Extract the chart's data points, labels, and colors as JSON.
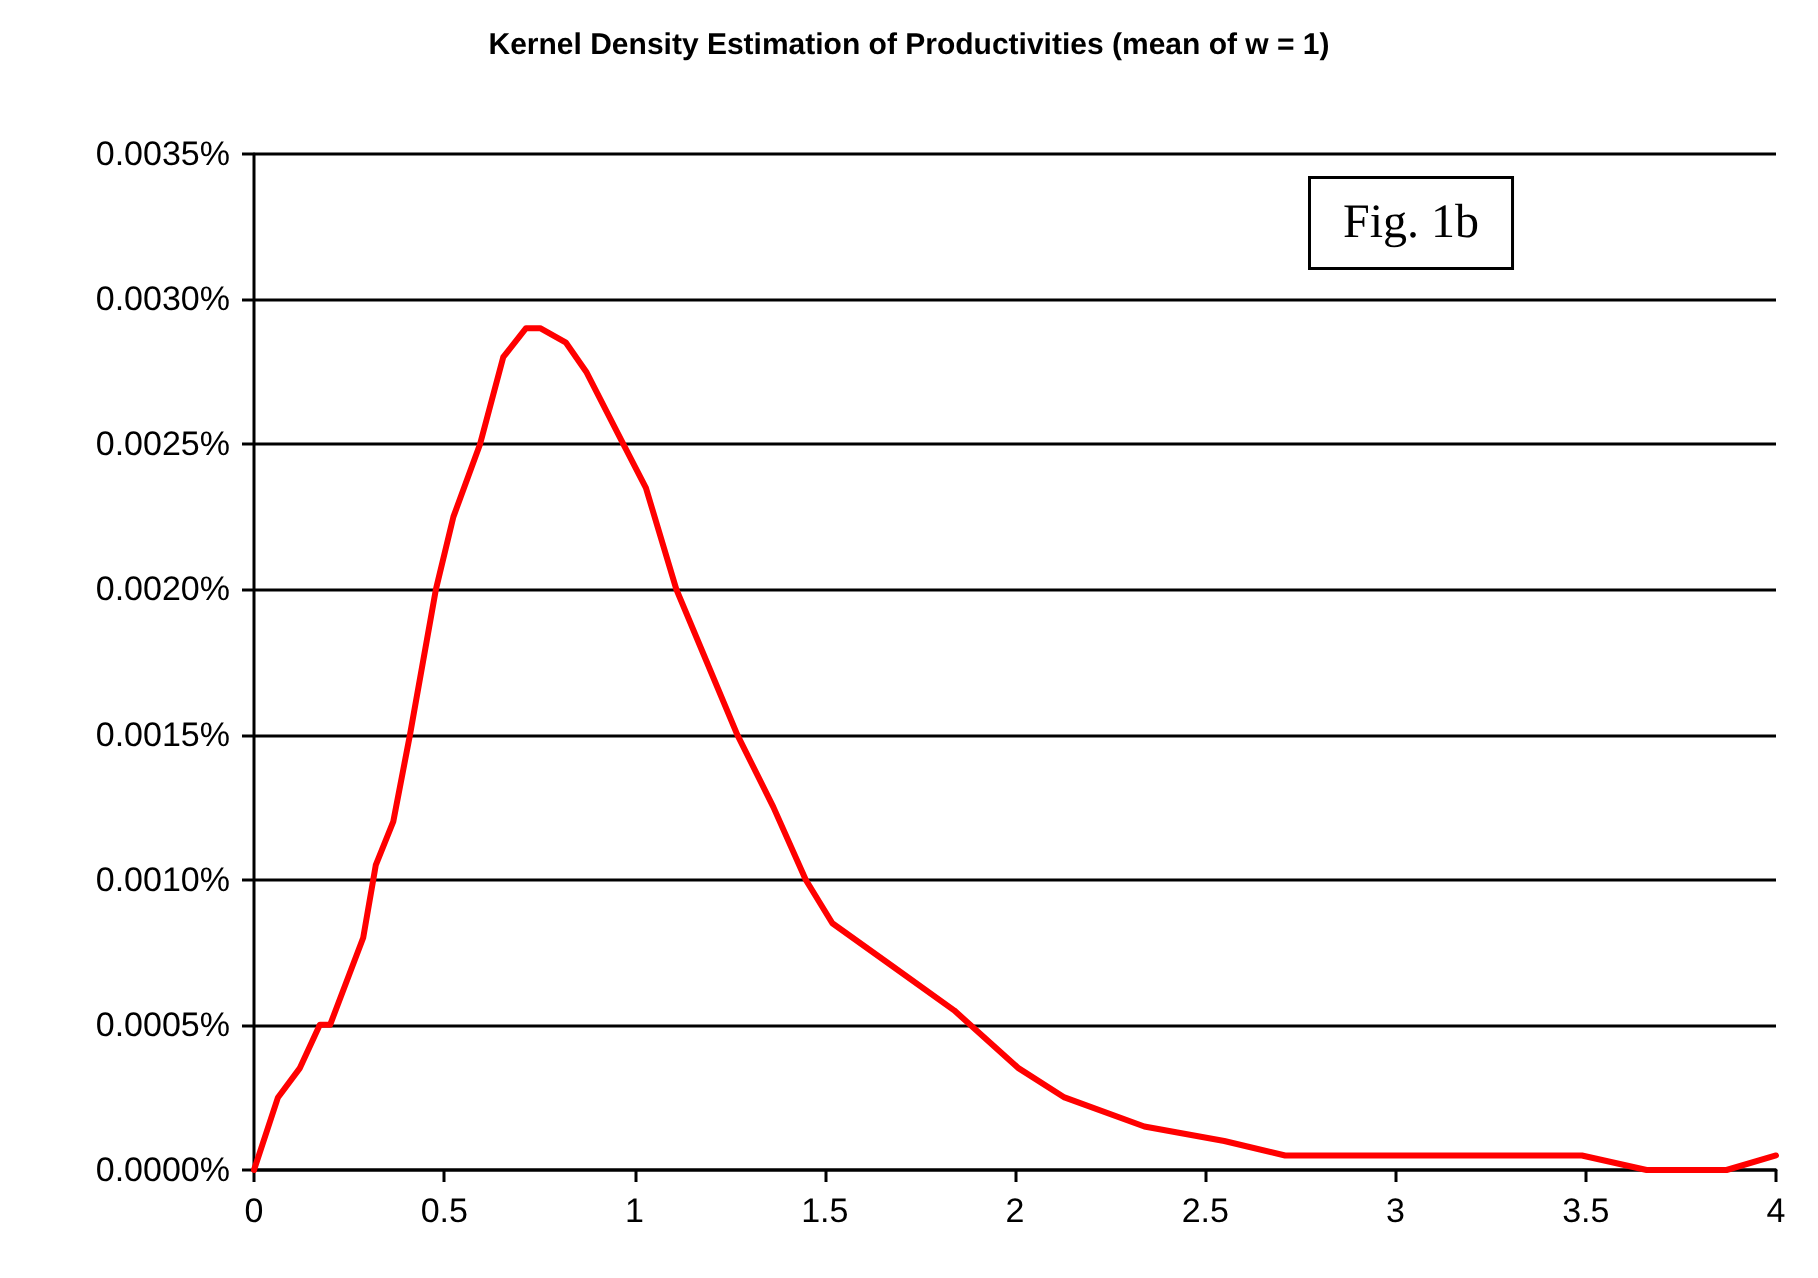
{
  "chart_data": {
    "type": "line",
    "title": "Kernel Density Estimation of Productivities (mean of w = 1)",
    "annotations": [
      "Fig. 1b"
    ],
    "series": [
      {
        "color": "#ff0000",
        "x": [
          0,
          0.063,
          0.12,
          0.173,
          0.2,
          0.287,
          0.32,
          0.366,
          0.41,
          0.478,
          0.524,
          0.594,
          0.655,
          0.715,
          0.752,
          0.82,
          0.873,
          0.971,
          1.03,
          1.11,
          1.19,
          1.27,
          1.365,
          1.45,
          1.52,
          1.68,
          1.84,
          2.01,
          2.13,
          2.34,
          2.55,
          2.71,
          3.0,
          3.49,
          3.66,
          3.87,
          4.0
        ],
        "values": [
          0,
          0.00025,
          0.00035,
          0.0005,
          0.0005,
          0.0008,
          0.00105,
          0.0012,
          0.0015,
          0.002,
          0.00225,
          0.0025,
          0.0028,
          0.0029,
          0.0029,
          0.00285,
          0.00275,
          0.0025,
          0.00235,
          0.002,
          0.00175,
          0.0015,
          0.00125,
          0.001,
          0.00085,
          0.0007,
          0.00055,
          0.00035,
          0.00025,
          0.00015,
          0.0001,
          5e-05,
          5e-05,
          5e-05,
          0,
          0,
          5e-05
        ]
      }
    ],
    "xlim": [
      0,
      4
    ],
    "xticks": [
      0,
      0.5,
      1,
      1.5,
      2,
      2.5,
      3,
      3.5,
      4
    ],
    "ylim": [
      0,
      0.0035
    ],
    "yticks": [
      {
        "value": 0,
        "label": "0.0000%"
      },
      {
        "value": 0.0005,
        "label": "0.0005%"
      },
      {
        "value": 0.001,
        "label": "0.0010%"
      },
      {
        "value": 0.0015,
        "label": "0.0015%"
      },
      {
        "value": 0.002,
        "label": "0.0020%"
      },
      {
        "value": 0.0025,
        "label": "0.0025%"
      },
      {
        "value": 0.003,
        "label": "0.0030%"
      },
      {
        "value": 0.0035,
        "label": "0.0035%"
      }
    ],
    "grid": "y",
    "marker": "none",
    "line_style": "solid"
  }
}
